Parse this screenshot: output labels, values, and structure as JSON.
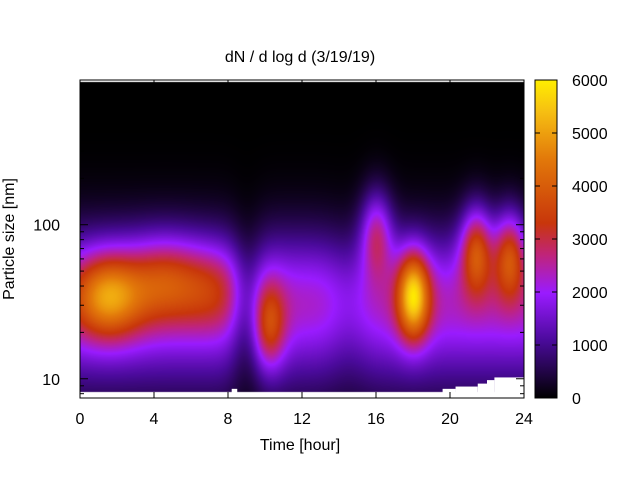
{
  "chart_data": {
    "type": "heatmap",
    "title": "dN / d log d (3/19/19)",
    "xlabel": "Time [hour]",
    "ylabel": "Particle size [nm]",
    "x_range": [
      0,
      24
    ],
    "x_ticks": [
      0,
      4,
      8,
      12,
      16,
      20,
      24
    ],
    "x_tick_labels": [
      "0",
      "4",
      "8",
      "12",
      "16",
      "20",
      "24"
    ],
    "y_scale": "log",
    "y_range": [
      7.5,
      870
    ],
    "y_ticks": [
      10,
      100
    ],
    "y_tick_labels": [
      "10",
      "100"
    ],
    "y_data_range": [
      8.3,
      850
    ],
    "colorbar": {
      "range": [
        0,
        6000
      ],
      "ticks": [
        0,
        1000,
        2000,
        3000,
        4000,
        5000,
        6000
      ],
      "tick_labels": [
        "0",
        "1000",
        "2000",
        "3000",
        "4000",
        "5000",
        "6000"
      ],
      "palette": "black-purple-red-orange-yellow"
    },
    "background_level": {
      "description": "bimodal size distribution; low-level values per time/size",
      "fine_mode_peak_nm": 35,
      "coarse_values_nm_above_300": 200
    },
    "features": [
      {
        "time_h": 1.5,
        "size_nm": 35,
        "peak": 4300
      },
      {
        "time_h": 4.5,
        "size_nm": 45,
        "peak": 3100
      },
      {
        "time_h": 7.0,
        "size_nm": 40,
        "peak": 2600
      },
      {
        "time_h": 10.2,
        "size_nm": 22,
        "peak": 3300
      },
      {
        "time_h": 16.0,
        "size_nm": 90,
        "peak": 3400
      },
      {
        "time_h": 18.0,
        "size_nm": 35,
        "peak": 5200
      },
      {
        "time_h": 21.4,
        "size_nm": 70,
        "peak": 4100
      },
      {
        "time_h": 23.2,
        "size_nm": 65,
        "peak": 3900
      }
    ],
    "missing_data_steps": [
      {
        "time_from_h": 8.2,
        "time_to_h": 8.5,
        "below_nm": 8.6
      },
      {
        "time_from_h": 19.6,
        "time_to_h": 20.3,
        "below_nm": 8.6
      },
      {
        "time_from_h": 20.3,
        "time_to_h": 21.5,
        "below_nm": 8.9
      },
      {
        "time_from_h": 21.5,
        "time_to_h": 22.0,
        "below_nm": 9.3
      },
      {
        "time_from_h": 22.0,
        "time_to_h": 22.4,
        "below_nm": 9.8
      },
      {
        "time_from_h": 22.4,
        "time_to_h": 24.0,
        "below_nm": 10.2
      }
    ]
  }
}
